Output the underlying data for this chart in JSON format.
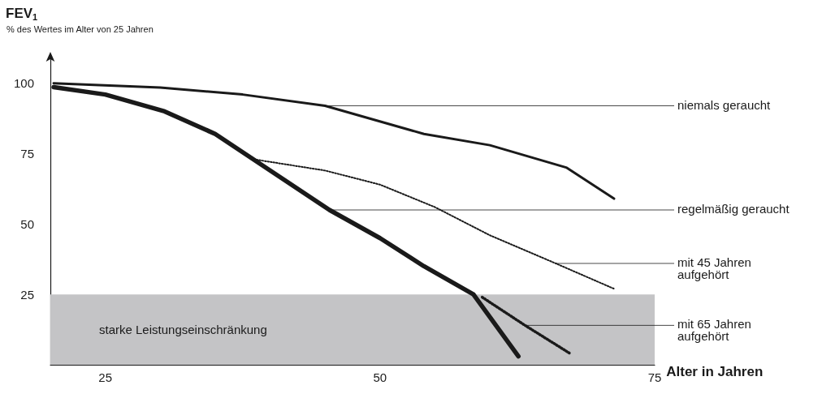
{
  "chart_data": {
    "type": "line",
    "title": "FEV$_{1}$",
    "ylabel": "% des Wertes im Alter von 25 Jahren",
    "xlabel": "Alter in Jahren",
    "xlim": [
      20,
      75
    ],
    "xticks": [
      25,
      50,
      75
    ],
    "ylim": [
      0,
      110
    ],
    "yticks": [
      25,
      50,
      75,
      100
    ],
    "grid": false,
    "marker": "none",
    "series": [
      {
        "name": "niemals geraucht",
        "color": "#1a1a1a",
        "line_style": "solid",
        "x": [
          20.3,
          30,
          37.5,
          45,
          54,
          60,
          67,
          71.3
        ],
        "values": [
          100,
          98.5,
          96,
          92,
          82,
          78,
          70,
          59
        ]
      },
      {
        "name": "regelmäßig geraucht",
        "color": "#1a1a1a",
        "line_style": "solid",
        "x": [
          20.3,
          25,
          30.4,
          35,
          45.4,
          50,
          54,
          58.5,
          62.6
        ],
        "values": [
          98.6,
          96,
          90,
          82,
          55,
          45,
          35,
          25,
          3
        ]
      },
      {
        "name": "mit 45 Jahren aufgehört",
        "color": "#1a1a1a",
        "line_style": "dotted",
        "x": [
          38.5,
          45,
          50,
          55,
          60,
          66,
          71.3
        ],
        "values": [
          73,
          69,
          64,
          56,
          46,
          36,
          27
        ]
      },
      {
        "name": "mit 65 Jahren aufgehört",
        "color": "#1a1a1a",
        "line_style": "dotted",
        "x": [
          59.3,
          63.2,
          67.3
        ],
        "values": [
          24,
          14,
          4
        ]
      }
    ],
    "bands": [
      {
        "axis": "y",
        "from": 0,
        "to": 25,
        "label": "starke Leistungseinschränkung",
        "color": "#c4c4c6"
      }
    ]
  }
}
